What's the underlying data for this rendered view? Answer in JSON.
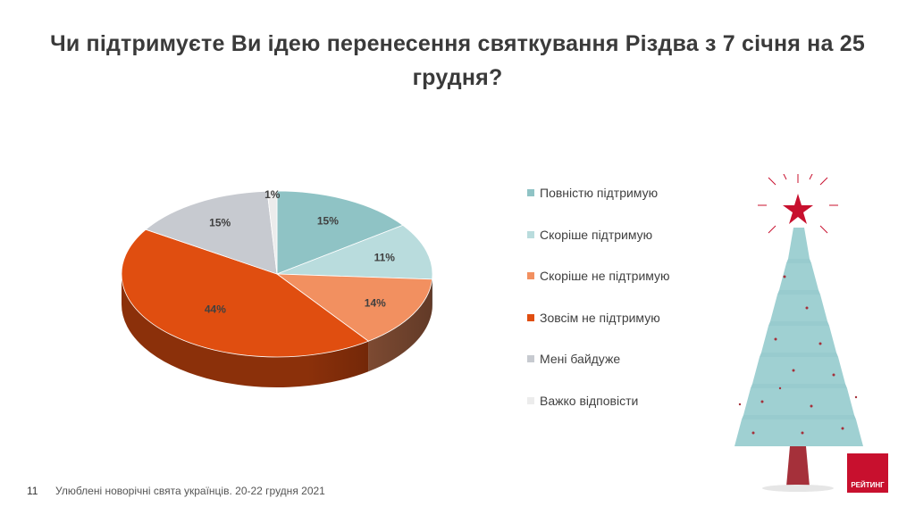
{
  "title": "Чи підтримуєте Ви ідею перенесення святкування Різдва з 7 січня на 25 грудня?",
  "footer": {
    "page_number": "11",
    "text": "Улюблені новорічні свята українців. 20-22 грудня 2021"
  },
  "logo": {
    "text": "РЕЙТИНГ",
    "color": "#c8102e"
  },
  "chart_data": {
    "type": "pie",
    "title": "Чи підтримуєте Ви ідею перенесення святкування Різдва з 7 січня на 25 грудня?",
    "legend_position": "right",
    "three_d": true,
    "categories": [
      "Повністю підтримую",
      "Скоріше  підтримую",
      "Скоріше  не підтримую",
      "Зовсім не підтримую",
      "Мені байдуже",
      "Важко відповісти"
    ],
    "values": [
      15,
      11,
      14,
      44,
      15,
      1
    ],
    "labels": [
      "15%",
      "11%",
      "14%",
      "44%",
      "15%",
      "1%"
    ],
    "colors": [
      "#8fc3c5",
      "#b9dcdd",
      "#f29060",
      "#e04e10",
      "#c7cad0",
      "#ececec"
    ]
  }
}
